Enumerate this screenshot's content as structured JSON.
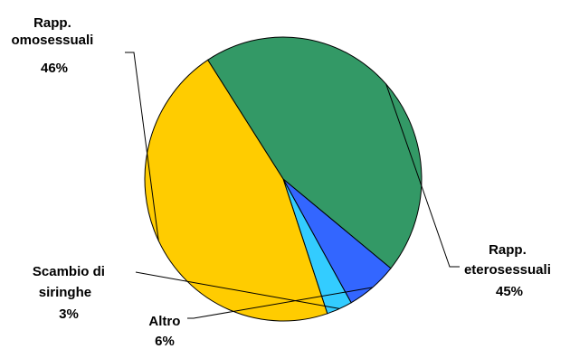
{
  "chart_data": {
    "type": "pie",
    "slices": [
      {
        "key": "omosessuali",
        "label_lines": [
          "Rapp.",
          "omosessuali"
        ],
        "pct_label": "46%",
        "value": 46,
        "color": "#FFCC00"
      },
      {
        "key": "eterosessuali",
        "label_lines": [
          "Rapp.",
          "eterosessuali"
        ],
        "pct_label": "45%",
        "value": 45,
        "color": "#339966"
      },
      {
        "key": "altro",
        "label_lines": [
          "Altro"
        ],
        "pct_label": "6%",
        "value": 6,
        "color": "#3366FF"
      },
      {
        "key": "siringhe",
        "label_lines": [
          "Scambio di",
          "siringhe"
        ],
        "pct_label": "3%",
        "value": 3,
        "color": "#33CCFF"
      }
    ],
    "legend": "none"
  }
}
